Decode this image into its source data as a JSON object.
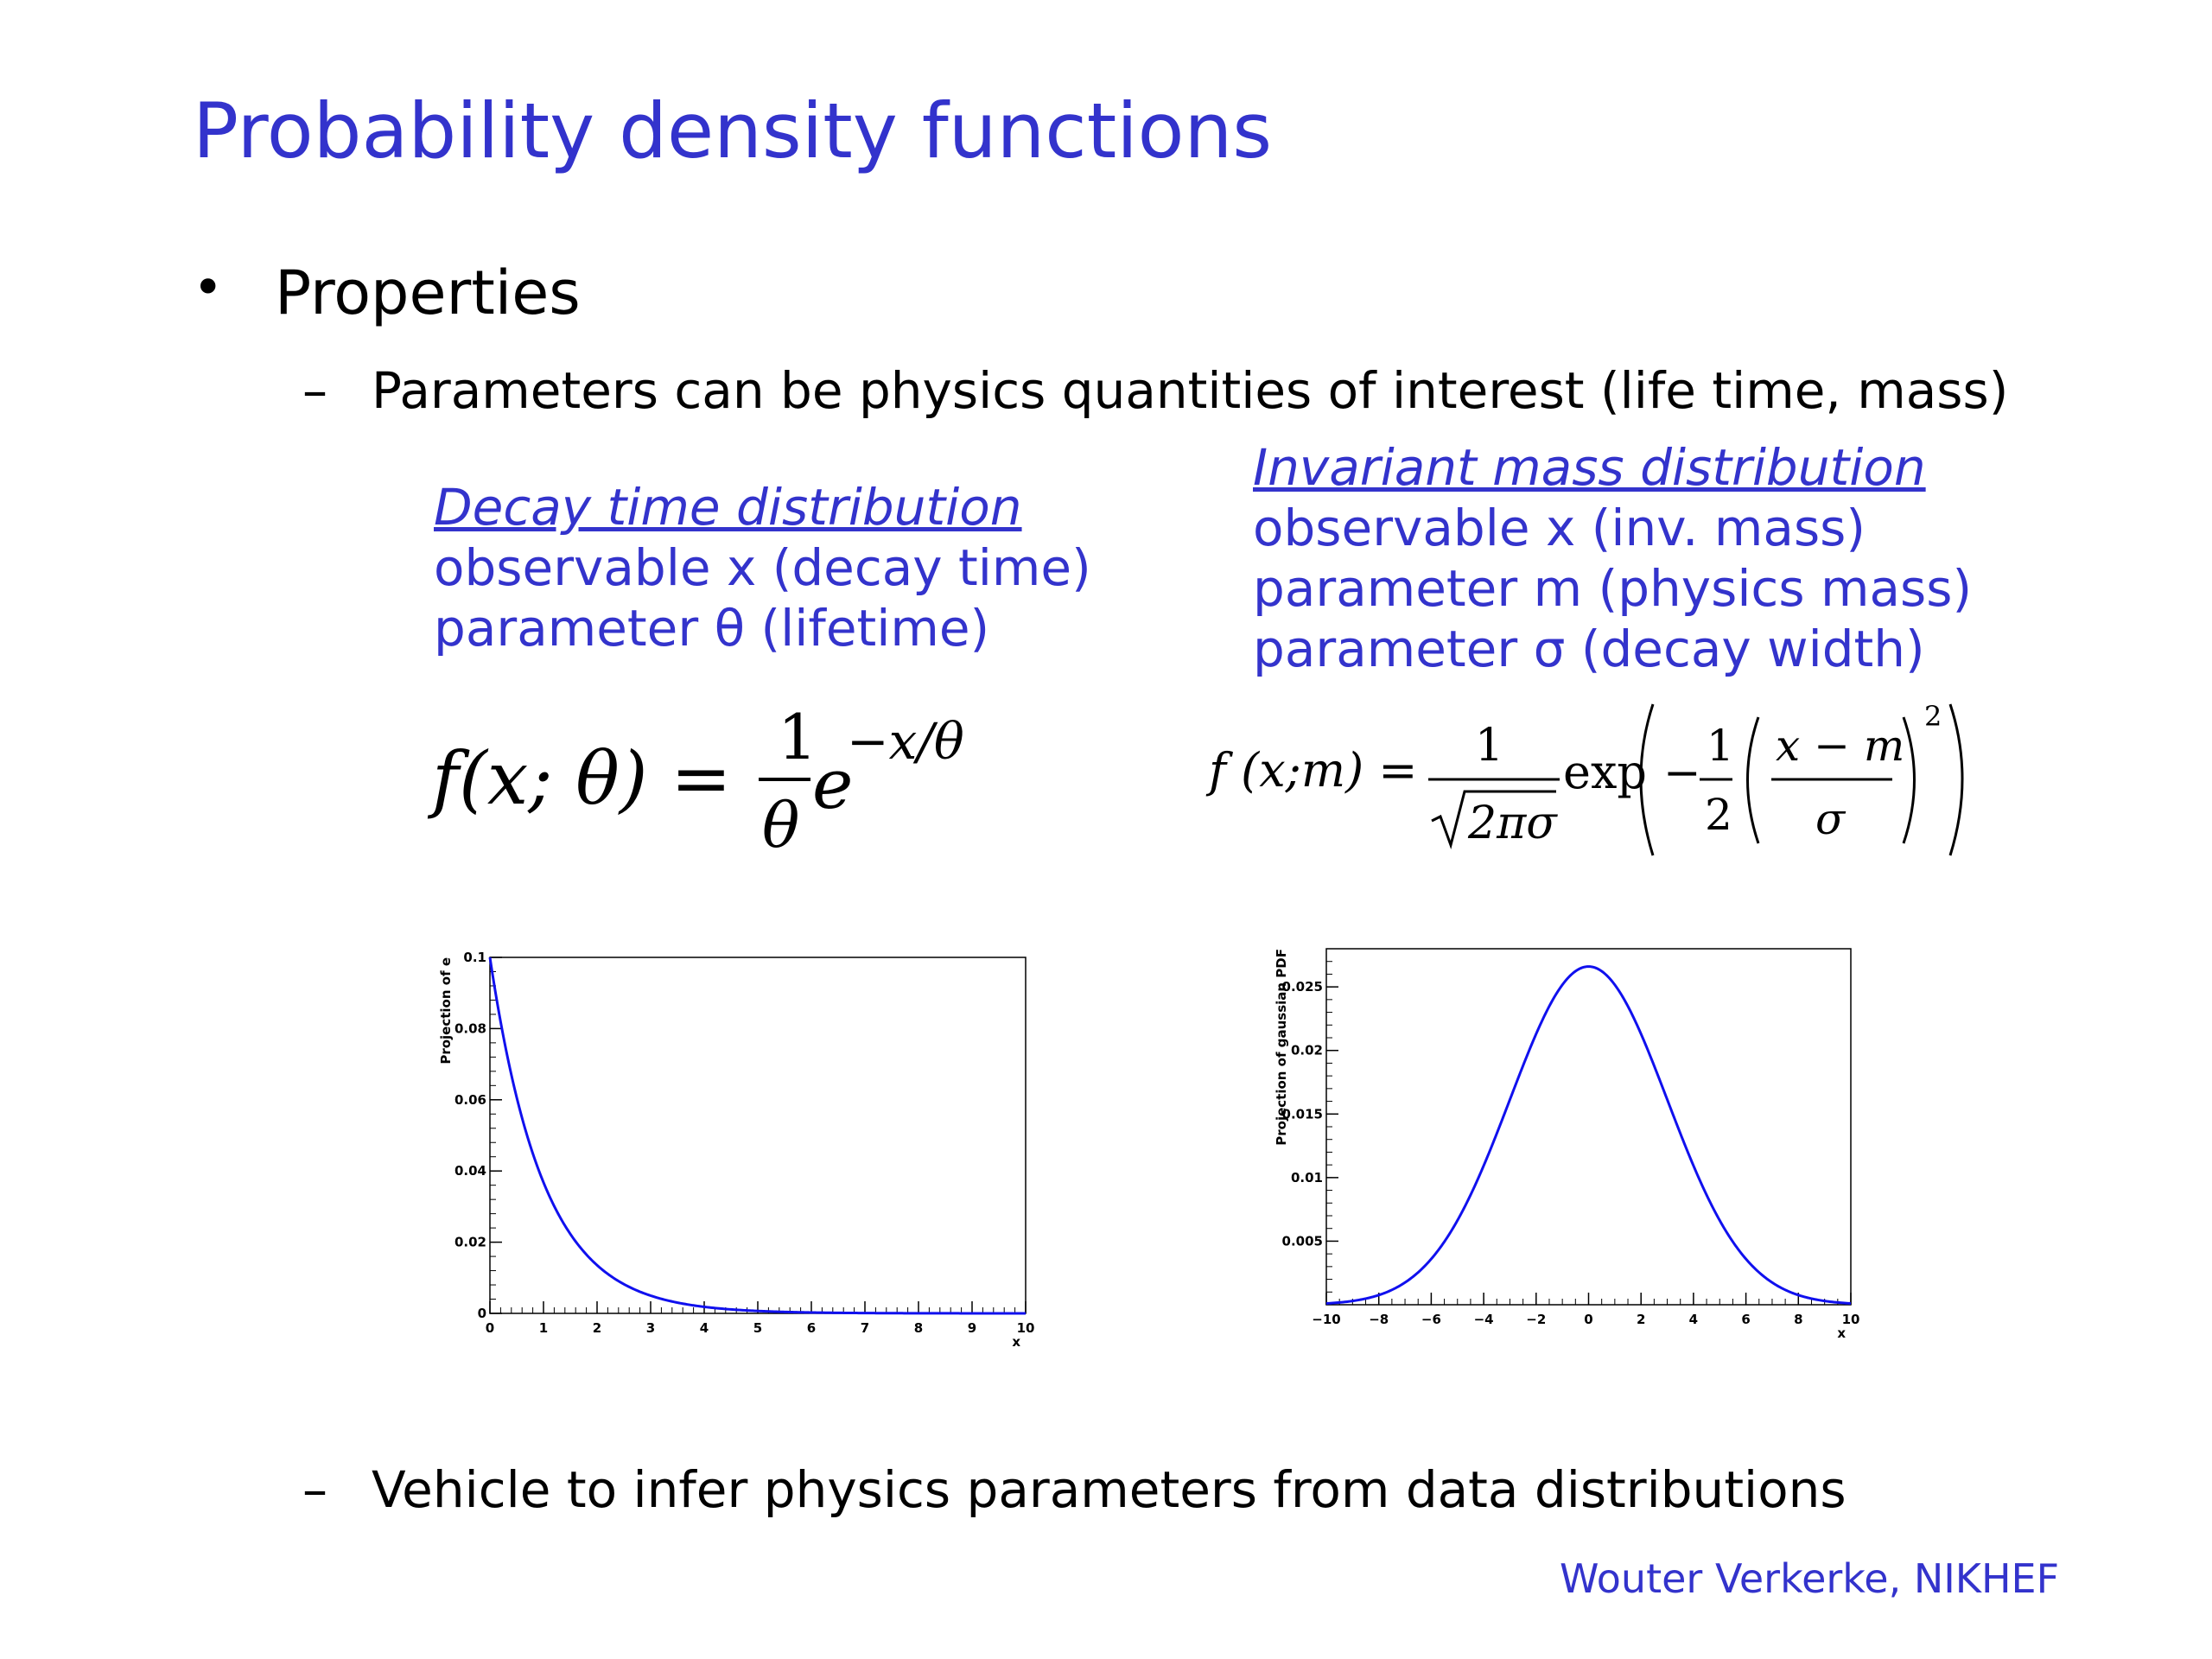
{
  "slide": {
    "title": "Probability density functions",
    "bullet": "Properties",
    "dash_symbol": "–",
    "sub_bullets": [
      "Parameters can be physics quantities of interest (life time, mass)",
      "Vehicle to infer physics parameters from data distributions"
    ],
    "footer": "Wouter Verkerke, NIKHEF"
  },
  "left_block": {
    "heading": "Decay time distribution",
    "lines": [
      "observable x (decay time)",
      "parameter θ (lifetime)"
    ],
    "formula": {
      "lhs": "f(x; θ) =",
      "numerator": "1",
      "denominator": "θ",
      "exp_base": "e",
      "exponent": "−x/θ"
    }
  },
  "right_block": {
    "heading": "Invariant mass distribution",
    "lines": [
      "observable x (inv. mass)",
      "parameter m (physics mass)",
      "parameter σ (decay width)"
    ],
    "formula": {
      "lhs": "f (x;m) =",
      "numerator": "1",
      "denominator": "2πσ",
      "func": "exp",
      "minus": "−",
      "half_num": "1",
      "half_den": "2",
      "inner_num": "x − m",
      "inner_den": "σ",
      "power": "2"
    }
  },
  "chart_data": [
    {
      "type": "line",
      "ylabel": "Projection of e",
      "xlabel": "x",
      "xlim": [
        0,
        10
      ],
      "ylim": [
        0,
        0.1
      ],
      "x_ticks": [
        "0",
        "1",
        "2",
        "3",
        "4",
        "5",
        "6",
        "7",
        "8",
        "9",
        "10"
      ],
      "y_ticks": [
        "0",
        "0.02",
        "0.04",
        "0.06",
        "0.08",
        "0.1"
      ],
      "curve": "exponential decay f(x) = (1/θ) e^(−x/θ), θ = 1",
      "series": [
        {
          "color": "#1010ee",
          "x": [
            0,
            0.25,
            0.5,
            0.75,
            1,
            1.5,
            2,
            2.5,
            3,
            4,
            5,
            6,
            7,
            8,
            9,
            10
          ],
          "y": [
            0.1,
            0.078,
            0.061,
            0.047,
            0.037,
            0.022,
            0.0135,
            0.0082,
            0.005,
            0.0018,
            0.0007,
            0.00025,
            0.0001,
            3e-05,
            1e-05,
            4.5e-06
          ]
        }
      ]
    },
    {
      "type": "line",
      "ylabel": "Projection of gaussian PDF",
      "xlabel": "x",
      "xlim": [
        -10,
        10
      ],
      "ylim": [
        0,
        0.028
      ],
      "x_ticks": [
        "−10",
        "−8",
        "−6",
        "−4",
        "−2",
        "0",
        "2",
        "4",
        "6",
        "8",
        "10"
      ],
      "y_ticks": [
        "0.005",
        "0.01",
        "0.015",
        "0.02",
        "0.025"
      ],
      "curve": "gaussian with mean 0, σ ≈ 3",
      "series": [
        {
          "color": "#1010ee",
          "x": [
            -10,
            -8,
            -6,
            -4,
            -2,
            0,
            2,
            4,
            6,
            8,
            10
          ],
          "y": [
            0.0003,
            0.0019,
            0.0066,
            0.0145,
            0.0213,
            0.0266,
            0.0213,
            0.0145,
            0.0066,
            0.0019,
            0.0003
          ]
        }
      ]
    }
  ]
}
